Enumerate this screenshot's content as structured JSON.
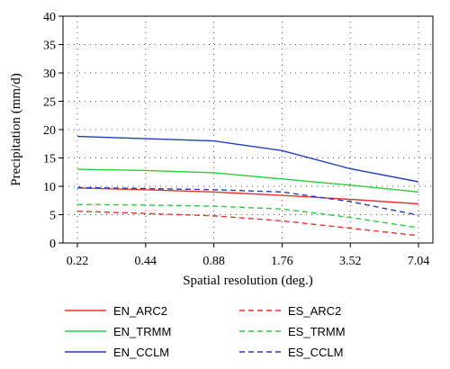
{
  "chart_data": {
    "type": "line",
    "xlabel": "Spatial resolution (deg.)",
    "ylabel": "Precipitation (mm/d)",
    "categories": [
      "0.22",
      "0.44",
      "0.88",
      "1.76",
      "3.52",
      "7.04"
    ],
    "ylim": [
      0,
      40
    ],
    "yticks": [
      0,
      5,
      10,
      15,
      20,
      25,
      30,
      35,
      40
    ],
    "grid": "dotted",
    "legend_position": "bottom",
    "series": [
      {
        "name": "EN_ARC2",
        "color": "#e3342f",
        "dash": "solid",
        "values": [
          9.7,
          9.4,
          9.0,
          8.4,
          7.7,
          6.9
        ]
      },
      {
        "name": "ES_ARC2",
        "color": "#e3342f",
        "dash": "dashed",
        "values": [
          5.6,
          5.2,
          4.8,
          3.9,
          2.6,
          1.3
        ]
      },
      {
        "name": "EN_TRMM",
        "color": "#2ecc40",
        "dash": "solid",
        "values": [
          13.0,
          12.8,
          12.4,
          11.3,
          10.2,
          9.0
        ]
      },
      {
        "name": "ES_TRMM",
        "color": "#2ecc40",
        "dash": "dashed",
        "values": [
          6.8,
          6.7,
          6.5,
          6.0,
          4.5,
          2.7
        ]
      },
      {
        "name": "EN_CCLM",
        "color": "#1f3fbf",
        "dash": "solid",
        "values": [
          18.8,
          18.4,
          18.0,
          16.3,
          13.1,
          10.8
        ]
      },
      {
        "name": "ES_CCLM",
        "color": "#1f3fbf",
        "dash": "dashed",
        "values": [
          9.8,
          9.6,
          9.4,
          9.0,
          7.3,
          4.9
        ]
      }
    ]
  }
}
